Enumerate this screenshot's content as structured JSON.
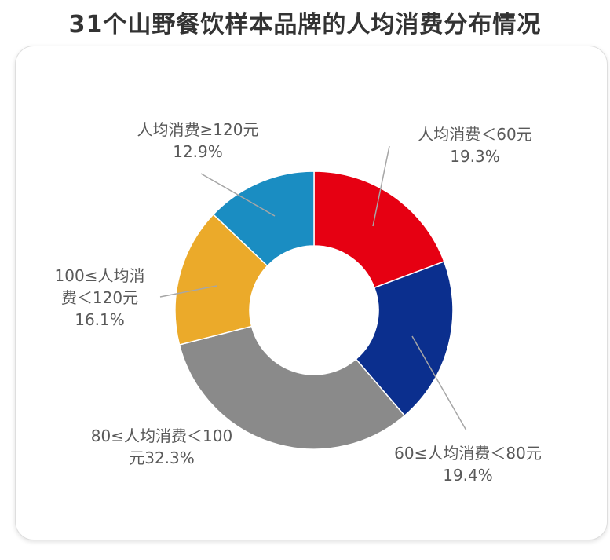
{
  "title": "31个山野餐饮样本品牌的人均消费分布情况",
  "chart_data": {
    "type": "pie",
    "donut": true,
    "slices": [
      {
        "lines": [
          "人均消费＜60元",
          "19.3%"
        ],
        "value": 19.3,
        "color": "#E60012"
      },
      {
        "lines": [
          "60≤人均消费＜80元",
          "19.4%"
        ],
        "value": 19.4,
        "color": "#0B2F8E"
      },
      {
        "lines": [
          "80≤人均消费＜100",
          "元32.3%"
        ],
        "value": 32.3,
        "color": "#8A8A8A"
      },
      {
        "lines": [
          "100≤人均消",
          "费＜120元",
          "16.1%"
        ],
        "value": 16.1,
        "color": "#EBAA2A"
      },
      {
        "lines": [
          "人均消费≥120元",
          "12.9%"
        ],
        "value": 12.9,
        "color": "#1A8DC2"
      }
    ]
  }
}
